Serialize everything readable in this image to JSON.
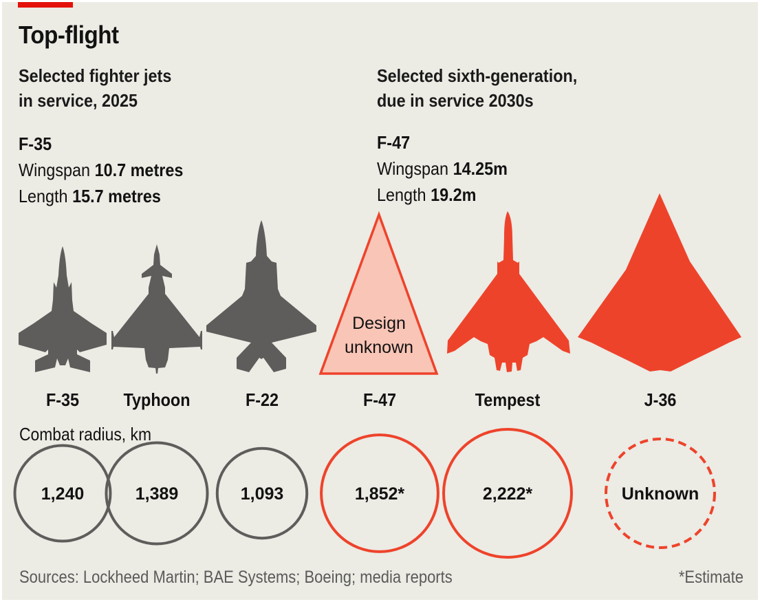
{
  "header": {
    "title": "Top-flight"
  },
  "groups": {
    "current": {
      "subtitle_line1": "Selected fighter jets",
      "subtitle_line2": "in service, 2025",
      "featured": {
        "name": "F-35",
        "wingspan_label": "Wingspan",
        "wingspan_value": "10.7 metres",
        "length_label": "Length",
        "length_value": "15.7 metres"
      }
    },
    "sixth_gen": {
      "subtitle_line1": "Selected sixth-generation,",
      "subtitle_line2": "due in service 2030s",
      "featured": {
        "name": "F-47",
        "wingspan_label": "Wingspan",
        "wingspan_value": "14.25m",
        "length_label": "Length",
        "length_value": "19.2m"
      }
    }
  },
  "colors": {
    "background": "#ECEBE4",
    "brand_red": "#E3120B",
    "current_gray": "#5E5D5B",
    "sixth_gen_red": "#EE432B",
    "unknown_fill": "#F9C5B6"
  },
  "unknown_design_line1": "Design",
  "unknown_design_line2": "unknown",
  "chart_data": {
    "type": "table",
    "title": "Top-flight",
    "radius_title": "Combat radius, km",
    "categories": [
      "F-35",
      "Typhoon",
      "F-22",
      "F-47",
      "Tempest",
      "J-36"
    ],
    "groups": [
      "in service, 2025",
      "in service, 2025",
      "in service, 2025",
      "sixth-generation, 2030s",
      "sixth-generation, 2030s",
      "sixth-generation, 2030s"
    ],
    "series": [
      {
        "name": "Combat radius, km",
        "values": [
          1240,
          1389,
          1093,
          1852,
          2222,
          null
        ],
        "labels": [
          "1,240",
          "1,389",
          "1,093",
          "1,852*",
          "2,222*",
          "Unknown"
        ],
        "estimated": [
          false,
          false,
          false,
          true,
          true,
          false
        ]
      }
    ],
    "design_known": [
      true,
      true,
      true,
      false,
      true,
      true
    ],
    "footnote": "*Estimate"
  },
  "footer": {
    "sources": "Sources: Lockheed Martin; BAE Systems; Boeing; media reports",
    "footnote": "*Estimate"
  }
}
